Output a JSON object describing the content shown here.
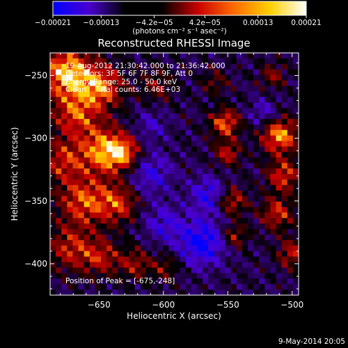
{
  "chart_data": {
    "type": "heatmap",
    "title": "Reconstructed RHESSI Image",
    "xlabel": "Heliocentric X (arcsec)",
    "ylabel": "Heliocentric Y (arcsec)",
    "xlim": [
      -688,
      -495
    ],
    "ylim": [
      -425,
      -232
    ],
    "x_ticks": [
      -650,
      -600,
      -550,
      -500
    ],
    "y_ticks": [
      -250,
      -300,
      -350,
      -400
    ],
    "x_tick_labels": [
      "−650",
      "−600",
      "−550",
      "−500"
    ],
    "y_tick_labels": [
      "−250",
      "−300",
      "−350",
      "−400"
    ],
    "colorbar": {
      "min": -0.00021,
      "max": 0.00021,
      "ticks": [
        -0.00021,
        -0.00013,
        -4.2e-05,
        4.2e-05,
        0.00013,
        0.00021
      ],
      "tick_labels": [
        "−0.00021",
        "−0.00013",
        "−4.2e−05",
        "4.2e−05",
        "0.00013",
        "0.00021"
      ],
      "units_label": "(photons cm⁻² s⁻¹ asec⁻²)",
      "colors": [
        "#0000ff",
        "#4a00d0",
        "#000000",
        "#000000",
        "#c80000",
        "#ff6a00",
        "#ffd000",
        "#ffffff"
      ]
    },
    "annotations": [
      "19-Aug-2012 21:30:42.000 to 21:36:42.000",
      "Detectors: 3F 5F 6F 7F 8F 9F, Att 0",
      "Energy Range: 25.0 - 50.0 keV",
      "Clean    Total counts: 6.46E+03"
    ],
    "peak_label": "Position of Peak = [-675,-248]",
    "peak": {
      "x": -675,
      "y": -248
    },
    "timestamp": "9-May-2014 20:05",
    "sources": [
      {
        "x": -675,
        "y": -248,
        "radius": 14,
        "value": 0.00021
      },
      {
        "x": -648,
        "y": -259,
        "radius": 12,
        "value": 0.00016
      },
      {
        "x": -668,
        "y": -282,
        "radius": 13,
        "value": 0.00014
      },
      {
        "x": -678,
        "y": -318,
        "radius": 12,
        "value": 0.00012
      },
      {
        "x": -645,
        "y": -310,
        "radius": 13,
        "value": 0.00019
      },
      {
        "x": -630,
        "y": -312,
        "radius": 9,
        "value": 0.00012
      },
      {
        "x": -662,
        "y": -350,
        "radius": 14,
        "value": 0.00015
      },
      {
        "x": -635,
        "y": -352,
        "radius": 11,
        "value": 0.00013
      },
      {
        "x": -672,
        "y": -388,
        "radius": 13,
        "value": 0.00012
      },
      {
        "x": -648,
        "y": -395,
        "radius": 10,
        "value": 0.00011
      },
      {
        "x": -622,
        "y": -400,
        "radius": 9,
        "value": 0.0001
      },
      {
        "x": -598,
        "y": -403,
        "radius": 8,
        "value": 8e-05
      },
      {
        "x": -552,
        "y": -288,
        "radius": 8,
        "value": 0.00016
      },
      {
        "x": -550,
        "y": -312,
        "radius": 7,
        "value": 0.00012
      },
      {
        "x": -547,
        "y": -350,
        "radius": 8,
        "value": 0.00013
      },
      {
        "x": -545,
        "y": -378,
        "radius": 7,
        "value": 0.00011
      },
      {
        "x": -510,
        "y": -298,
        "radius": 10,
        "value": 0.00019
      },
      {
        "x": -507,
        "y": -330,
        "radius": 9,
        "value": 0.00014
      },
      {
        "x": -512,
        "y": -360,
        "radius": 9,
        "value": 0.00013
      },
      {
        "x": -500,
        "y": -392,
        "radius": 8,
        "value": 0.00012
      },
      {
        "x": -515,
        "y": -250,
        "radius": 7,
        "value": 9e-05
      },
      {
        "x": -605,
        "y": -258,
        "radius": 9,
        "value": 8e-05
      },
      {
        "x": -560,
        "y": -255,
        "radius": 7,
        "value": 7e-05
      }
    ],
    "negative_regions": [
      {
        "x": -570,
        "y": -383,
        "radius": 13,
        "value": -0.00016
      },
      {
        "x": -565,
        "y": -345,
        "radius": 10,
        "value": -0.00012
      },
      {
        "x": -610,
        "y": -328,
        "radius": 12,
        "value": -0.0001
      },
      {
        "x": -600,
        "y": -368,
        "radius": 11,
        "value": -9e-05
      },
      {
        "x": -522,
        "y": -280,
        "radius": 8,
        "value": -8e-05
      },
      {
        "x": -610,
        "y": -290,
        "radius": 9,
        "value": -7e-05
      }
    ]
  }
}
